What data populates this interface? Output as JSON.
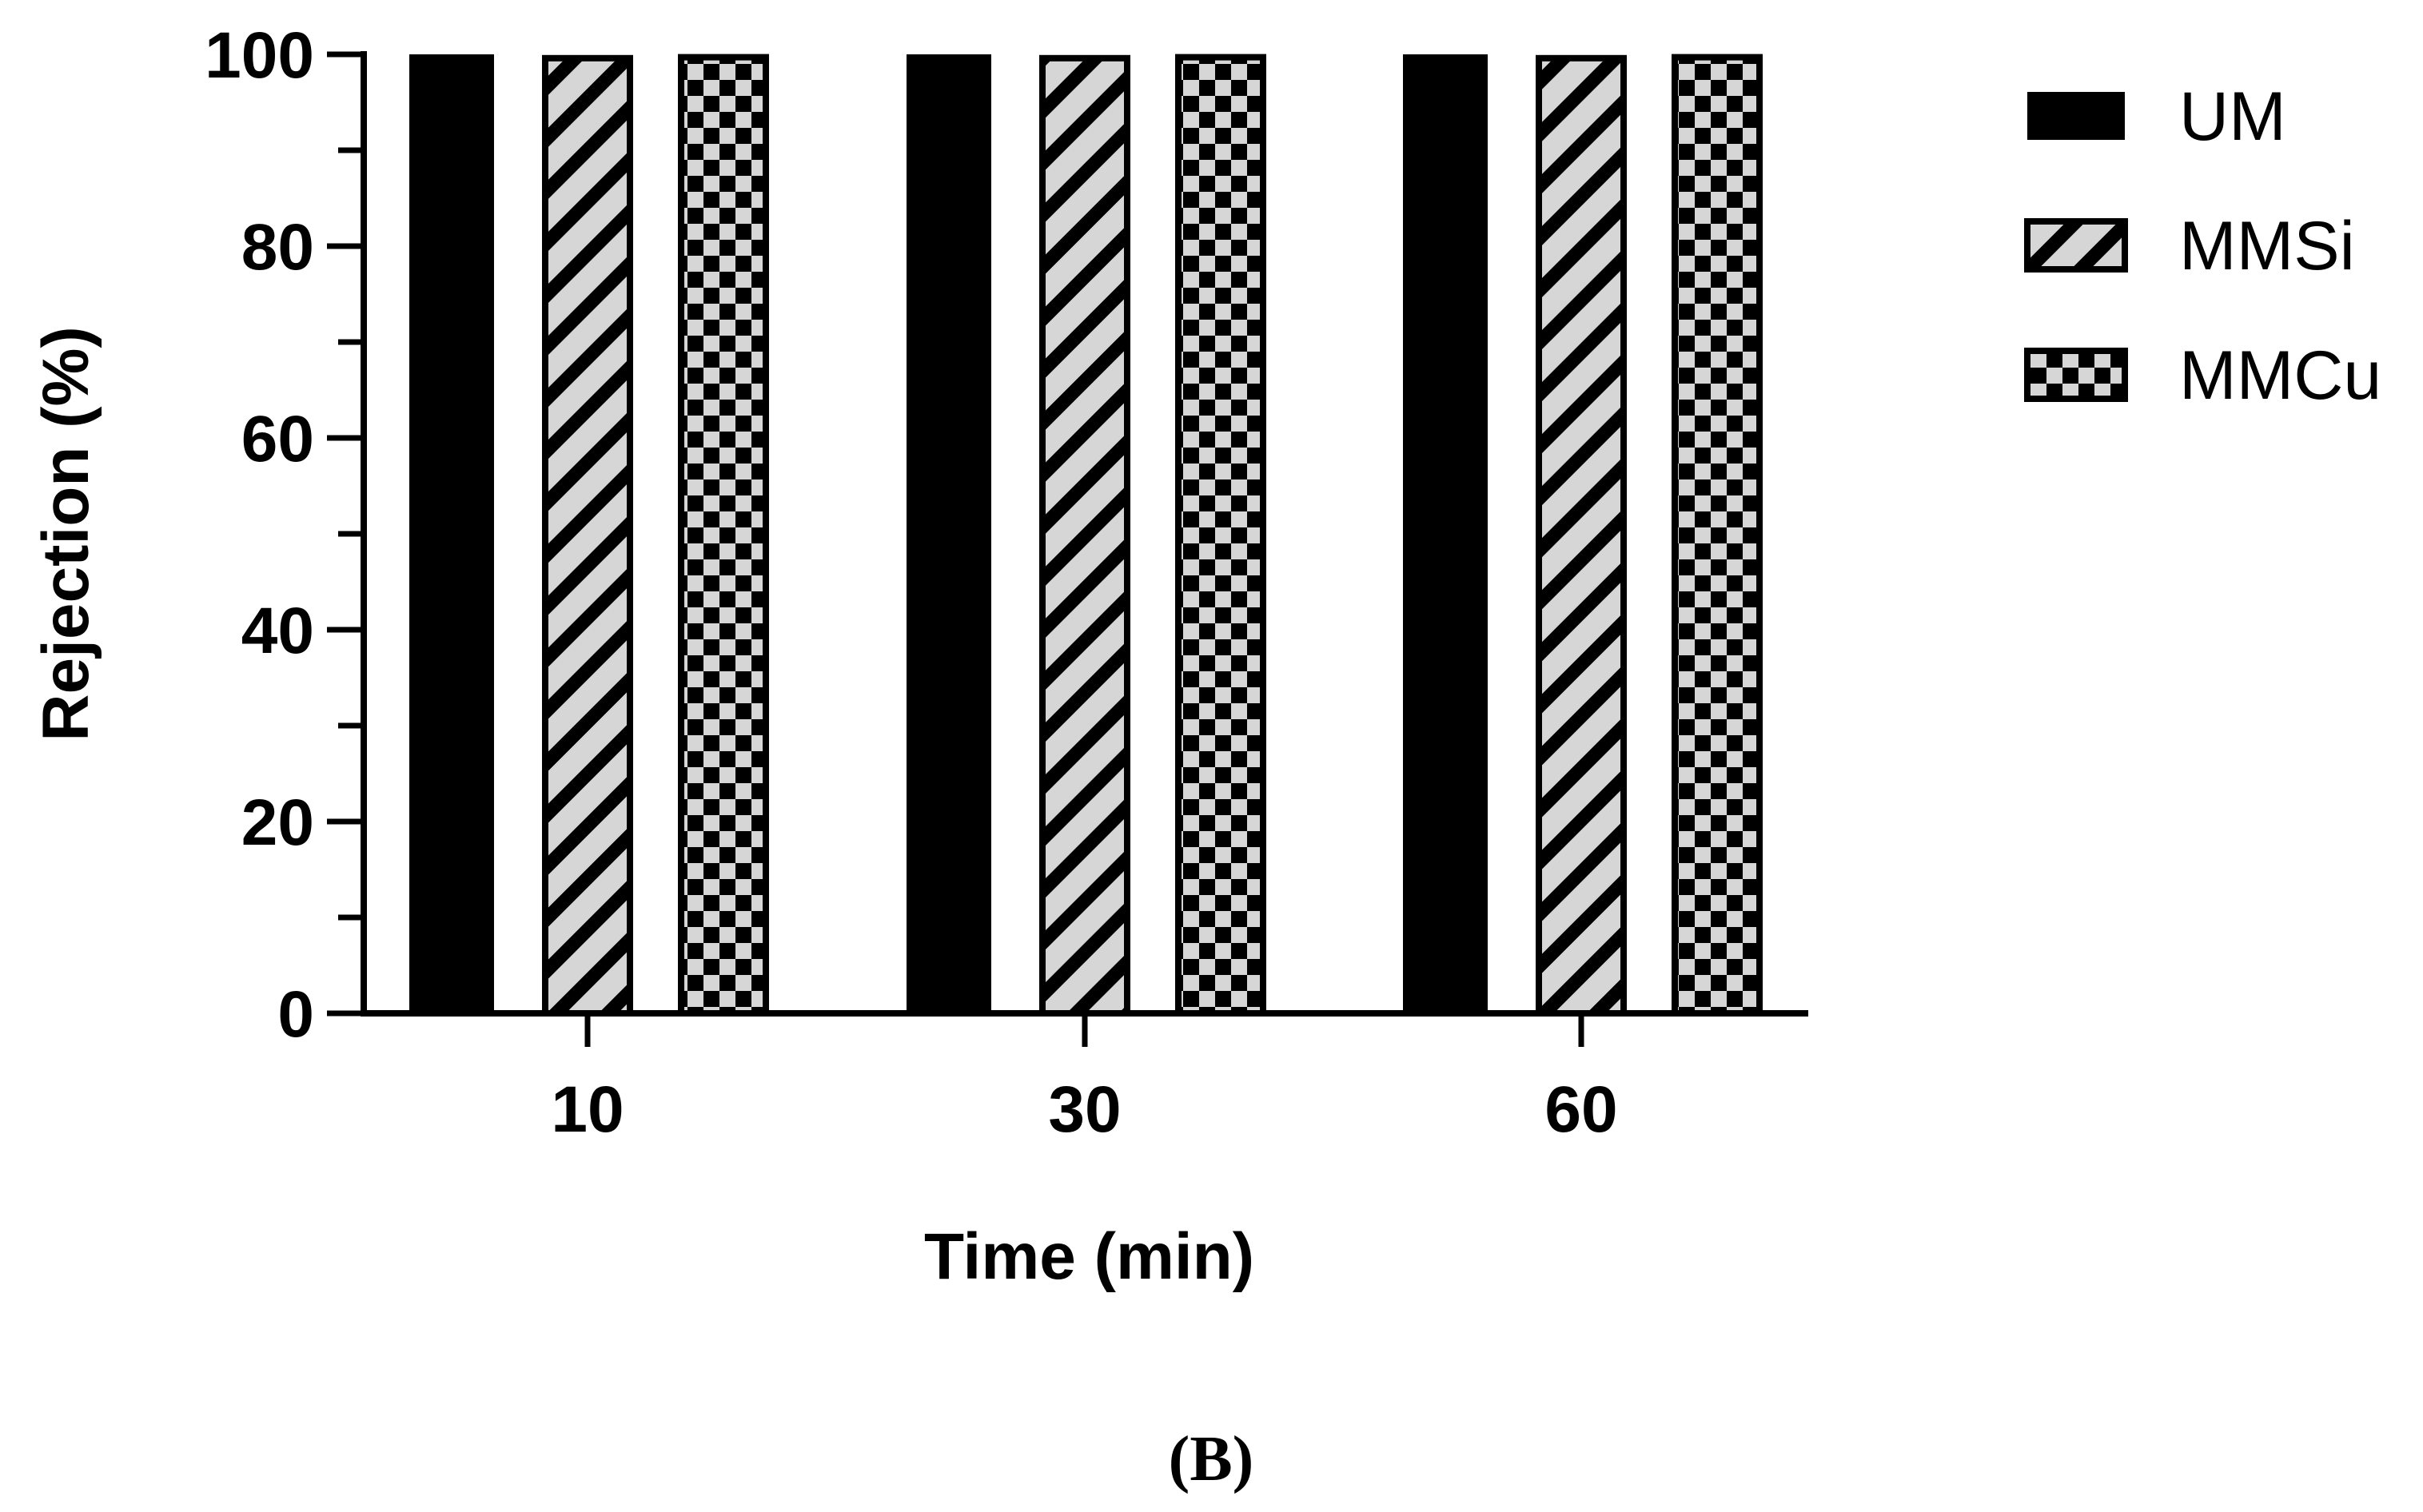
{
  "chart_data": {
    "type": "bar",
    "categories": [
      "10",
      "30",
      "60"
    ],
    "series": [
      {
        "name": "UM",
        "values": [
          100,
          100,
          100
        ],
        "pattern": "solid"
      },
      {
        "name": "MMSi",
        "values": [
          99.6,
          99.6,
          99.6
        ],
        "pattern": "diagonal-hatch"
      },
      {
        "name": "MMCu",
        "values": [
          99.7,
          99.7,
          99.7
        ],
        "pattern": "checkerboard"
      }
    ],
    "xlabel": "Time (min)",
    "ylabel": "Rejection (%)",
    "ylim": [
      0,
      100
    ],
    "yticks": [
      0,
      20,
      40,
      60,
      80,
      100
    ],
    "yticks_minor_step": 10,
    "grid": false,
    "legend_position": "top-right",
    "panel_label": "(B)",
    "colors": {
      "bar_fill_dark": "#000000",
      "bar_fill_light": "#d6d6d6",
      "stroke": "#000000"
    }
  }
}
